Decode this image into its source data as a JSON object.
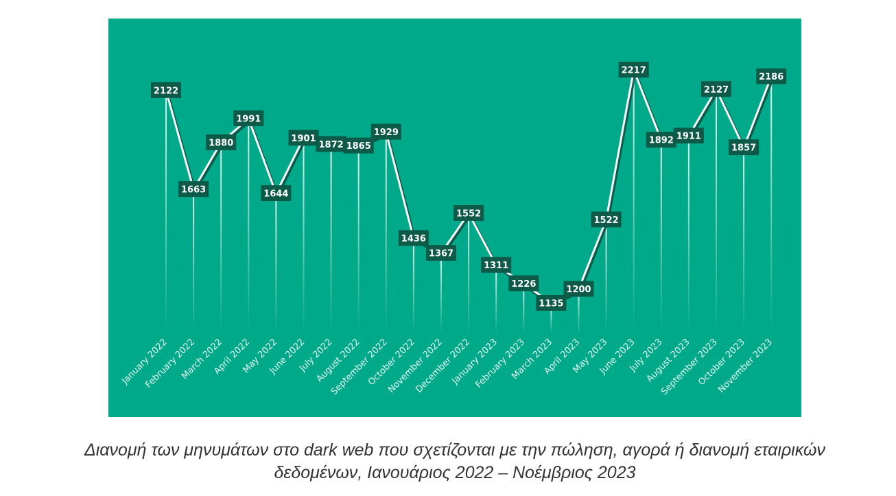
{
  "chart_data": {
    "type": "line",
    "title": "",
    "xlabel": "",
    "ylabel": "",
    "categories": [
      "January 2022",
      "February 2022",
      "March 2022",
      "April 2022",
      "May 2022",
      "June 2022",
      "July 2022",
      "August 2022",
      "September 2022",
      "October 2022",
      "November 2022",
      "December 2022",
      "January 2023",
      "February 2023",
      "March 2023",
      "April 2023",
      "May 2023",
      "June 2023",
      "July 2023",
      "August 2023",
      "September 2023",
      "October 2023",
      "November 2023"
    ],
    "values": [
      2122,
      1663,
      1880,
      1991,
      1644,
      1901,
      1872,
      1865,
      1929,
      1436,
      1367,
      1552,
      1311,
      1226,
      1135,
      1200,
      1522,
      2217,
      1892,
      1911,
      2127,
      1857,
      2186
    ],
    "data_labels": true,
    "grid": false,
    "legend": "none",
    "colors": {
      "background": "#00a98a",
      "line": "#ffffff",
      "label_box": "#0d5a48",
      "label_text": "#ffffff",
      "axis_text": "#e4f6f1",
      "drop_line": "#ffffff"
    }
  },
  "caption": {
    "line1": "Διανομή των μηνυμάτων στο dark web που σχετίζονται με την πώληση, αγορά ή διανομή εταιρικών",
    "line2": "δεδομένων, Ιανουάριος 2022 – Νοέμβριος 2023"
  }
}
